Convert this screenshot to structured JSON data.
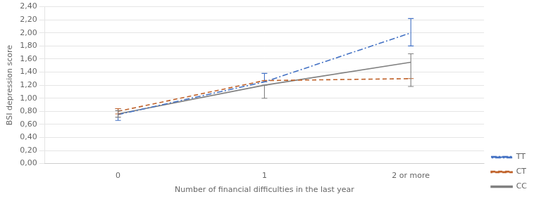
{
  "chart_data": {
    "type": "line",
    "x_label": "Number of financial difficulties in the last year",
    "y_label": "BSI depression score",
    "categories": [
      "0",
      "1",
      "2 or more"
    ],
    "series": [
      {
        "name": "TT",
        "color": "#4472C4",
        "line_style": "dashdot",
        "values": [
          0.75,
          1.25,
          2.0
        ],
        "error_low": [
          0.09,
          0.0,
          0.2
        ],
        "error_high": [
          0.09,
          0.13,
          0.22
        ]
      },
      {
        "name": "CT",
        "color": "#C0622A",
        "line_style": "dashed",
        "values": [
          0.8,
          1.27,
          1.3
        ],
        "error_low": [
          0.04,
          0.0,
          0.0
        ],
        "error_high": [
          0.04,
          0.0,
          0.0
        ]
      },
      {
        "name": "CC",
        "color": "#808080",
        "line_style": "solid",
        "values": [
          0.76,
          1.2,
          1.55
        ],
        "error_low": [
          0.05,
          0.2,
          0.37
        ],
        "error_high": [
          0.05,
          0.0,
          0.13
        ]
      }
    ],
    "marker": "none",
    "ylim": [
      0.0,
      2.4
    ],
    "yticks": [
      {
        "value": 0.0,
        "label": "0,00"
      },
      {
        "value": 0.2,
        "label": "0,20"
      },
      {
        "value": 0.4,
        "label": "0,40"
      },
      {
        "value": 0.6,
        "label": "0,60"
      },
      {
        "value": 0.8,
        "label": "0,80"
      },
      {
        "value": 1.0,
        "label": "1,00"
      },
      {
        "value": 1.2,
        "label": "1,20"
      },
      {
        "value": 1.4,
        "label": "1,40"
      },
      {
        "value": 1.6,
        "label": "1,60"
      },
      {
        "value": 1.8,
        "label": "1,80"
      },
      {
        "value": 2.0,
        "label": "2,00"
      },
      {
        "value": 2.2,
        "label": "2,20"
      },
      {
        "value": 2.4,
        "label": "2,40"
      }
    ],
    "grid": true,
    "legend": "lower right"
  }
}
